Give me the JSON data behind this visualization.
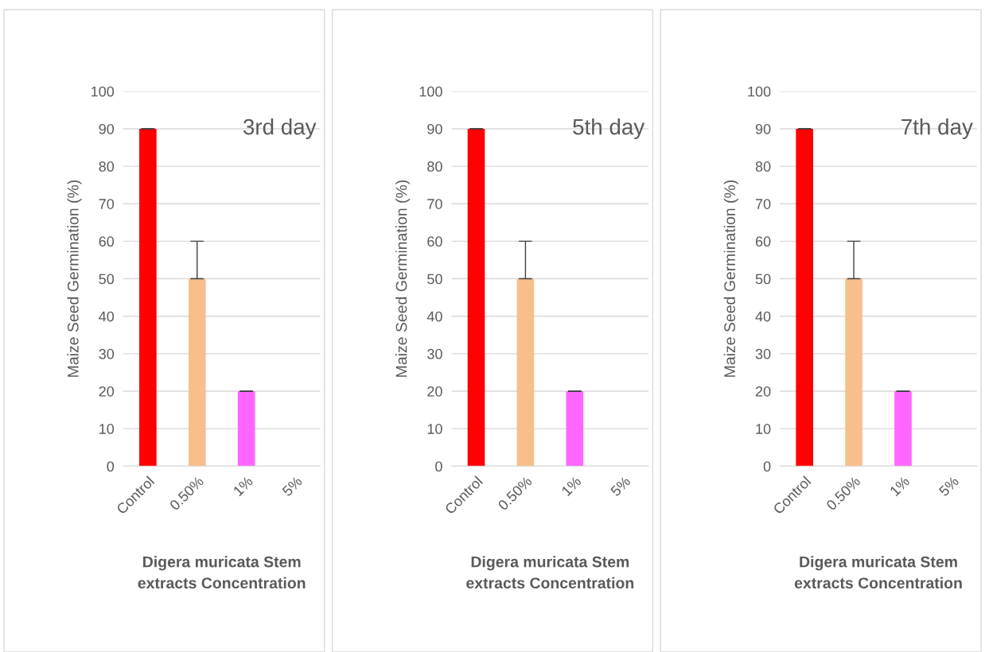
{
  "chart_data": [
    {
      "type": "bar",
      "title": "3rd day",
      "ylabel": "Maize Seed Germination (%)",
      "xlabel": "Digera muricata Stem extracts Concentration",
      "categories": [
        "Control",
        "0.50%",
        "1%",
        "5%"
      ],
      "values": [
        90,
        50,
        20,
        0
      ],
      "colors": [
        "#ff0000",
        "#f8bf8c",
        "#ff66ff",
        "#ff66ff"
      ],
      "errors": [
        0,
        [
          50,
          60
        ],
        0,
        null
      ],
      "ylim": [
        0,
        100
      ],
      "yticks": [
        0,
        10,
        20,
        30,
        40,
        50,
        60,
        70,
        80,
        90,
        100
      ],
      "grid": "y"
    },
    {
      "type": "bar",
      "title": "5th day",
      "ylabel": "Maize Seed Germination (%)",
      "xlabel": "Digera muricata Stem extracts Concentration",
      "categories": [
        "Control",
        "0.50%",
        "1%",
        "5%"
      ],
      "values": [
        90,
        50,
        20,
        0
      ],
      "colors": [
        "#ff0000",
        "#f8bf8c",
        "#ff66ff",
        "#ff66ff"
      ],
      "errors": [
        0,
        [
          50,
          60
        ],
        0,
        null
      ],
      "ylim": [
        0,
        100
      ],
      "yticks": [
        0,
        10,
        20,
        30,
        40,
        50,
        60,
        70,
        80,
        90,
        100
      ],
      "grid": "y"
    },
    {
      "type": "bar",
      "title": "7th day",
      "ylabel": "Maize Seed Germination (%)",
      "xlabel": "Digera muricata Stem extracts Concentration",
      "categories": [
        "Control",
        "0.50%",
        "1%",
        "5%"
      ],
      "values": [
        90,
        50,
        20,
        0
      ],
      "colors": [
        "#ff0000",
        "#f8bf8c",
        "#ff66ff",
        "#ff66ff"
      ],
      "errors": [
        0,
        [
          50,
          60
        ],
        0,
        null
      ],
      "ylim": [
        0,
        100
      ],
      "yticks": [
        0,
        10,
        20,
        30,
        40,
        50,
        60,
        70,
        80,
        90,
        100
      ],
      "grid": "y"
    }
  ]
}
